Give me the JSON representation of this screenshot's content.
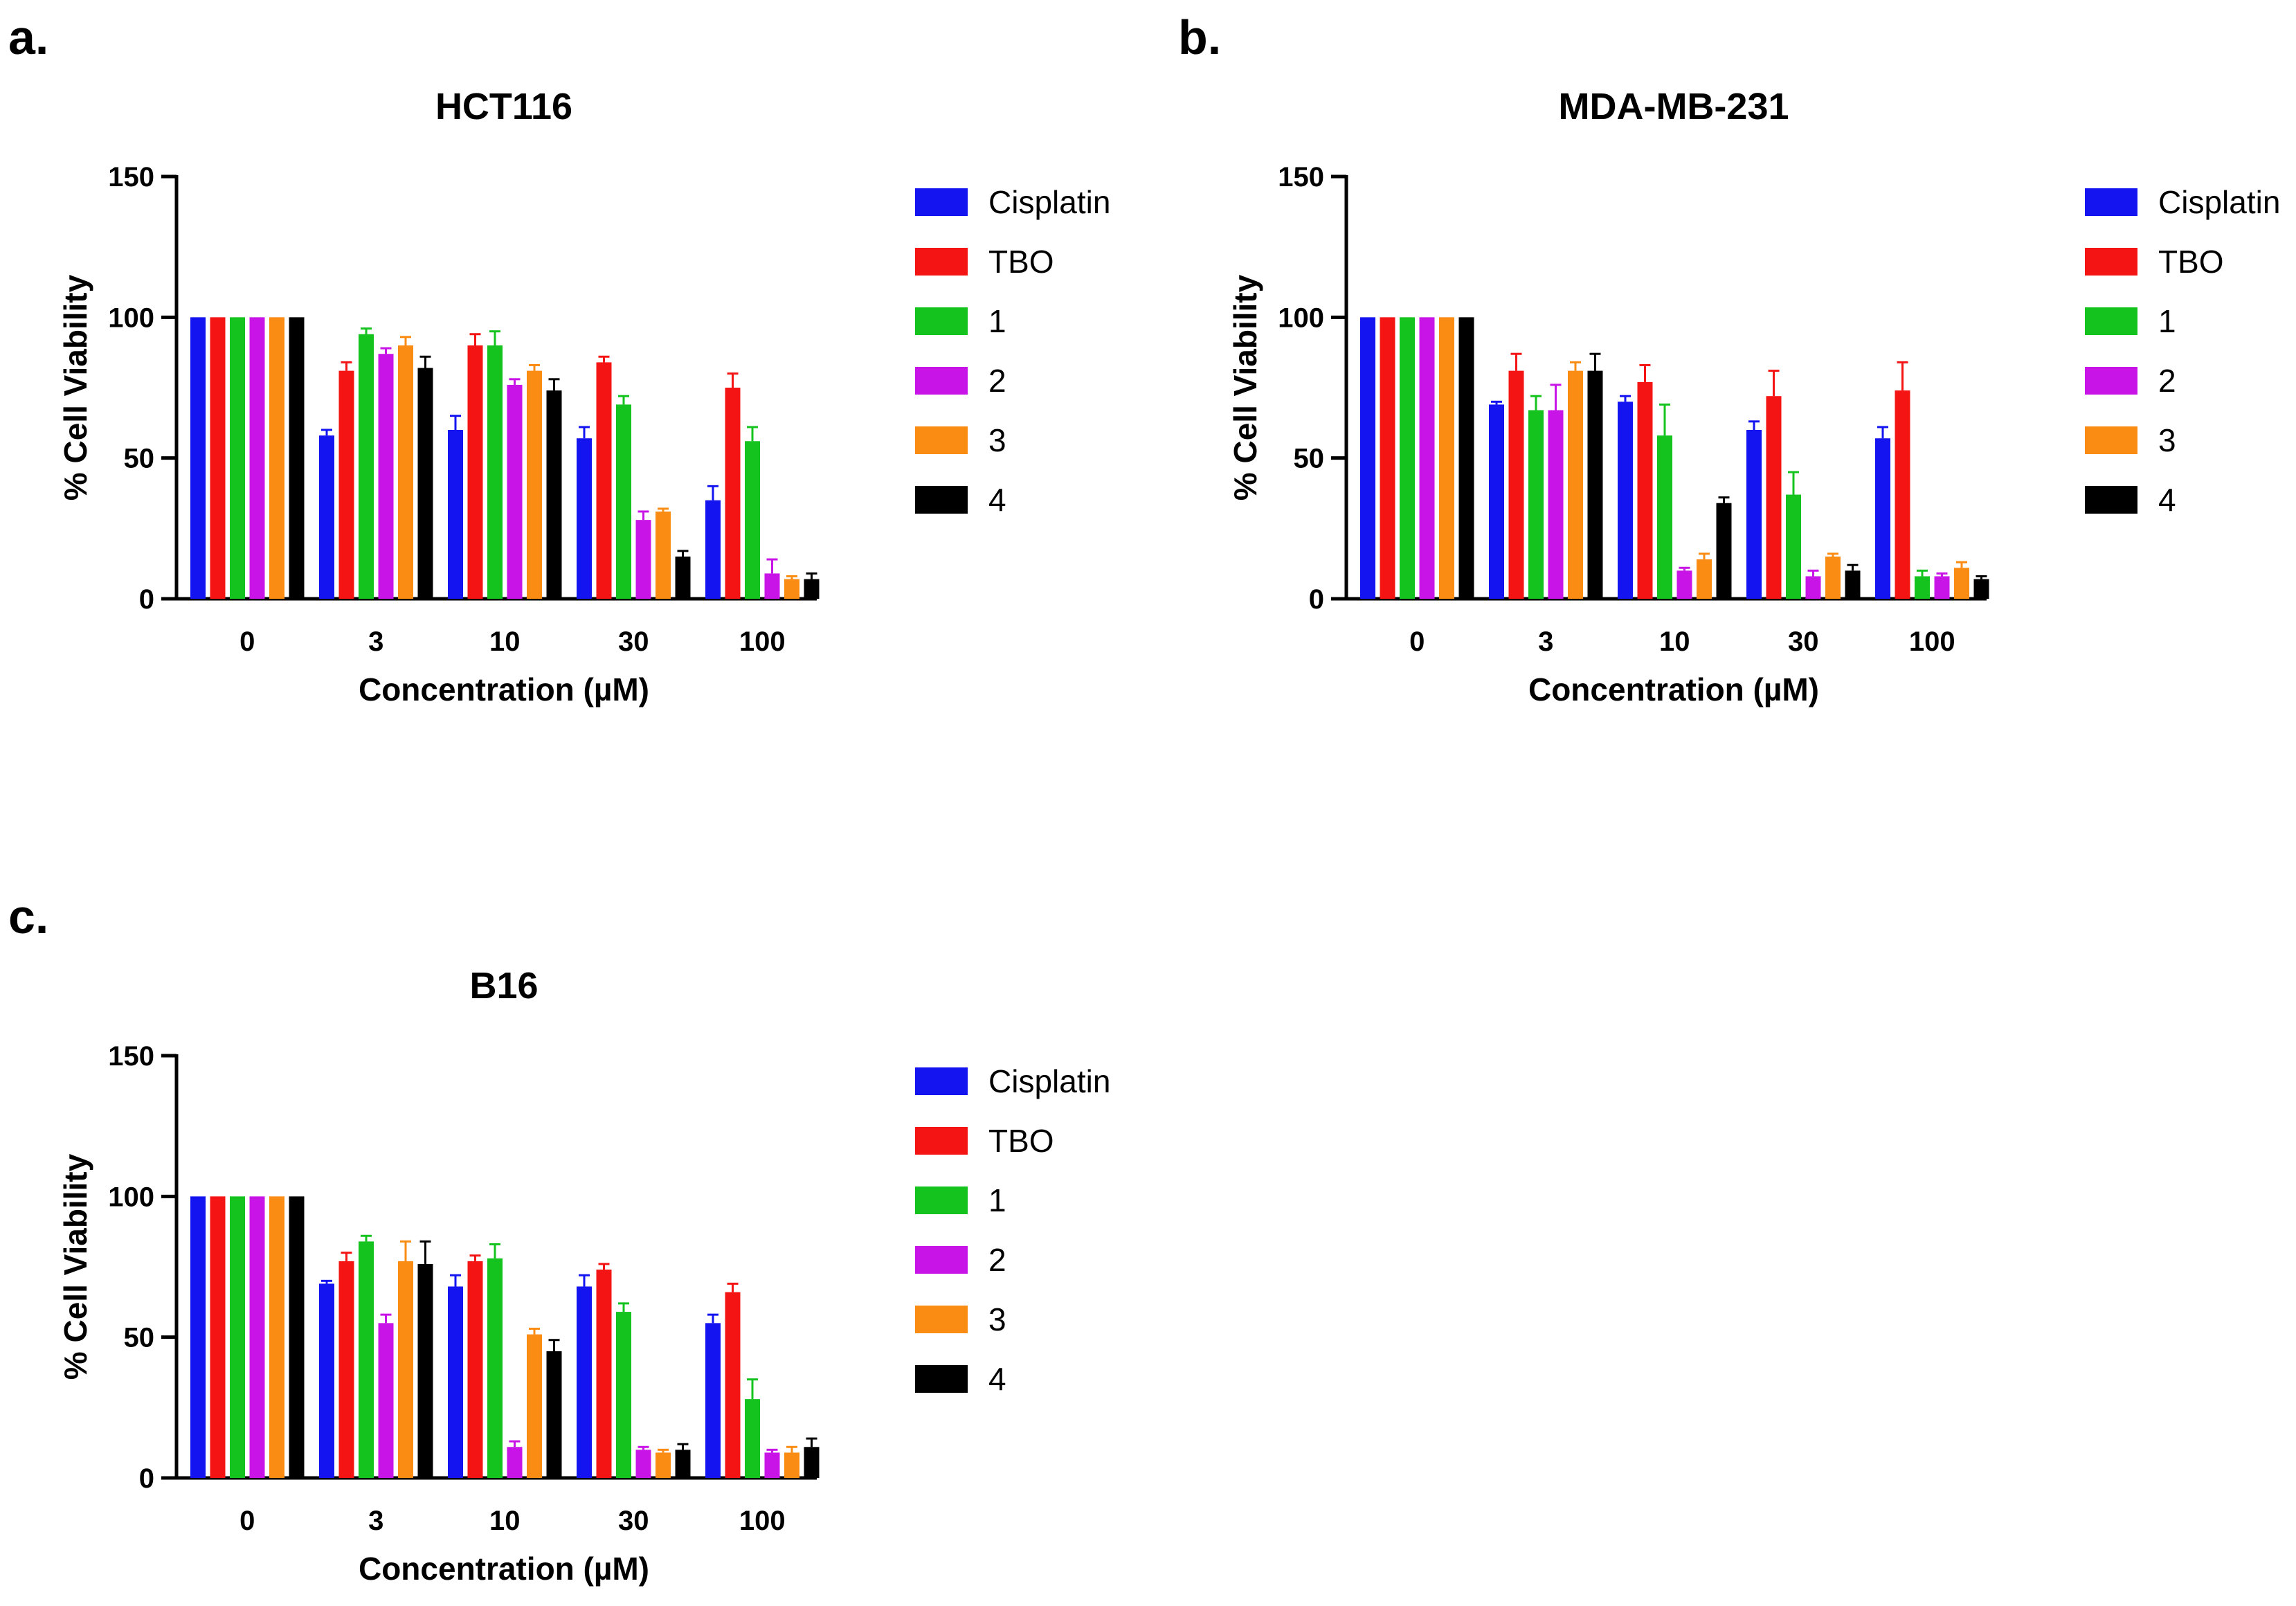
{
  "colors": {
    "series": [
      "#1414f0",
      "#f51414",
      "#14c31e",
      "#c814e6",
      "#fa8c14",
      "#000000"
    ],
    "axis": "#000000"
  },
  "chart_data": [
    {
      "type": "bar",
      "panel_label": "a.",
      "title": "HCT116",
      "xlabel": "Concentration (µM)",
      "ylabel": "% Cell Viability",
      "ylim": [
        0,
        150
      ],
      "yticks": [
        "0",
        "50",
        "100",
        "150"
      ],
      "categories": [
        "0",
        "3",
        "10",
        "30",
        "100"
      ],
      "series": [
        {
          "name": "Cisplatin",
          "values": [
            100,
            58,
            60,
            57,
            35
          ],
          "errors": [
            0,
            2,
            5,
            4,
            5
          ]
        },
        {
          "name": "TBO",
          "values": [
            100,
            81,
            90,
            84,
            75
          ],
          "errors": [
            0,
            3,
            4,
            2,
            5
          ]
        },
        {
          "name": "1",
          "values": [
            100,
            94,
            90,
            69,
            56
          ],
          "errors": [
            0,
            2,
            5,
            3,
            5
          ]
        },
        {
          "name": "2",
          "values": [
            100,
            87,
            76,
            28,
            9
          ],
          "errors": [
            0,
            2,
            2,
            3,
            5
          ]
        },
        {
          "name": "3",
          "values": [
            100,
            90,
            81,
            31,
            7
          ],
          "errors": [
            0,
            3,
            2,
            1,
            1
          ]
        },
        {
          "name": "4",
          "values": [
            100,
            82,
            74,
            15,
            7
          ],
          "errors": [
            0,
            4,
            4,
            2,
            2
          ]
        }
      ]
    },
    {
      "type": "bar",
      "panel_label": "b.",
      "title": "MDA-MB-231",
      "xlabel": "Concentration (µM)",
      "ylabel": "% Cell Viability",
      "ylim": [
        0,
        150
      ],
      "yticks": [
        "0",
        "50",
        "100",
        "150"
      ],
      "categories": [
        "0",
        "3",
        "10",
        "30",
        "100"
      ],
      "series": [
        {
          "name": "Cisplatin",
          "values": [
            100,
            69,
            70,
            60,
            57
          ],
          "errors": [
            0,
            1,
            2,
            3,
            4
          ]
        },
        {
          "name": "TBO",
          "values": [
            100,
            81,
            77,
            72,
            74
          ],
          "errors": [
            0,
            6,
            6,
            9,
            10
          ]
        },
        {
          "name": "1",
          "values": [
            100,
            67,
            58,
            37,
            8
          ],
          "errors": [
            0,
            5,
            11,
            8,
            2
          ]
        },
        {
          "name": "2",
          "values": [
            100,
            67,
            10,
            8,
            8
          ],
          "errors": [
            0,
            9,
            1,
            2,
            1
          ]
        },
        {
          "name": "3",
          "values": [
            100,
            81,
            14,
            15,
            11
          ],
          "errors": [
            0,
            3,
            2,
            1,
            2
          ]
        },
        {
          "name": "4",
          "values": [
            100,
            81,
            34,
            10,
            7
          ],
          "errors": [
            0,
            6,
            2,
            2,
            1
          ]
        }
      ]
    },
    {
      "type": "bar",
      "panel_label": "c.",
      "title": "B16",
      "xlabel": "Concentration (µM)",
      "ylabel": "% Cell Viability",
      "ylim": [
        0,
        150
      ],
      "yticks": [
        "0",
        "50",
        "100",
        "150"
      ],
      "categories": [
        "0",
        "3",
        "10",
        "30",
        "100"
      ],
      "series": [
        {
          "name": "Cisplatin",
          "values": [
            100,
            69,
            68,
            68,
            55
          ],
          "errors": [
            0,
            1,
            4,
            4,
            3
          ]
        },
        {
          "name": "TBO",
          "values": [
            100,
            77,
            77,
            74,
            66
          ],
          "errors": [
            0,
            3,
            2,
            2,
            3
          ]
        },
        {
          "name": "1",
          "values": [
            100,
            84,
            78,
            59,
            28
          ],
          "errors": [
            0,
            2,
            5,
            3,
            7
          ]
        },
        {
          "name": "2",
          "values": [
            100,
            55,
            11,
            10,
            9
          ],
          "errors": [
            0,
            3,
            2,
            1,
            1
          ]
        },
        {
          "name": "3",
          "values": [
            100,
            77,
            51,
            9,
            9
          ],
          "errors": [
            0,
            7,
            2,
            1,
            2
          ]
        },
        {
          "name": "4",
          "values": [
            100,
            76,
            45,
            10,
            11
          ],
          "errors": [
            0,
            8,
            4,
            2,
            3
          ]
        }
      ]
    }
  ]
}
